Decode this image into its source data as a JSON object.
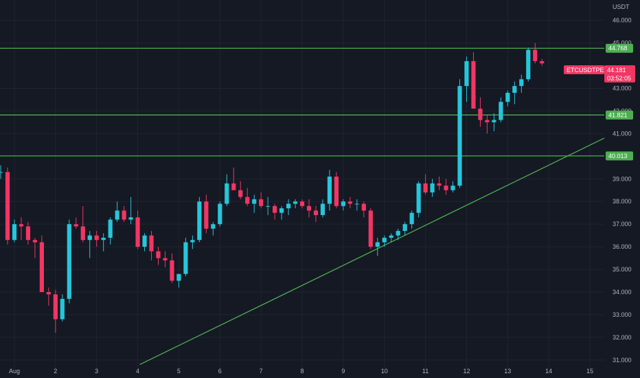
{
  "chart_data": {
    "type": "candlestick",
    "currency_label": "USDT",
    "symbol": "ETCUSDTPERP",
    "last_price": "44.181",
    "countdown": "03:52:05",
    "ylim": [
      30.6,
      46.9
    ],
    "xlim": [
      0.65,
      15.35
    ],
    "y_ticks": [
      "46.000",
      "45.000",
      "43.000",
      "42.000",
      "41.000",
      "39.000",
      "38.000",
      "37.000",
      "36.000",
      "35.000",
      "34.000",
      "33.000",
      "32.000",
      "31.000"
    ],
    "x_ticks": [
      {
        "label": "Aug",
        "x": 1
      },
      {
        "label": "2",
        "x": 2
      },
      {
        "label": "3",
        "x": 3
      },
      {
        "label": "4",
        "x": 4
      },
      {
        "label": "5",
        "x": 5
      },
      {
        "label": "6",
        "x": 6
      },
      {
        "label": "7",
        "x": 7
      },
      {
        "label": "8",
        "x": 8
      },
      {
        "label": "9",
        "x": 9
      },
      {
        "label": "10",
        "x": 10
      },
      {
        "label": "11",
        "x": 11
      },
      {
        "label": "12",
        "x": 12
      },
      {
        "label": "13",
        "x": 13
      },
      {
        "label": "14",
        "x": 14
      },
      {
        "label": "15",
        "x": 15
      }
    ],
    "levels": [
      {
        "value": 44.768,
        "label": "44.768"
      },
      {
        "value": 41.821,
        "label": "41.821"
      },
      {
        "value": 40.013,
        "label": "40.013"
      }
    ],
    "trendline": {
      "from": [
        4.05,
        30.8
      ],
      "to": [
        15.35,
        40.8
      ]
    },
    "candles_per_day": 6,
    "candle_start_x": 0.667,
    "candles": [
      [
        39.3,
        39.6,
        39.0,
        39.3
      ],
      [
        39.3,
        39.5,
        36.1,
        36.3
      ],
      [
        36.3,
        37.2,
        36.2,
        37.0
      ],
      [
        37.0,
        37.3,
        36.3,
        36.9
      ],
      [
        36.9,
        37.1,
        36.1,
        36.3
      ],
      [
        36.3,
        36.4,
        35.5,
        36.2
      ],
      [
        36.2,
        36.5,
        34.0,
        34.0
      ],
      [
        34.0,
        34.2,
        33.4,
        33.9
      ],
      [
        33.9,
        34.1,
        32.2,
        32.8
      ],
      [
        32.8,
        33.9,
        32.7,
        33.7
      ],
      [
        33.7,
        37.2,
        33.5,
        37.0
      ],
      [
        37.0,
        37.3,
        36.8,
        36.9
      ],
      [
        36.9,
        37.8,
        36.2,
        36.3
      ],
      [
        36.3,
        36.7,
        35.5,
        36.5
      ],
      [
        36.5,
        36.7,
        36.0,
        36.3
      ],
      [
        36.3,
        36.6,
        35.8,
        36.4
      ],
      [
        36.4,
        37.3,
        36.1,
        37.2
      ],
      [
        37.2,
        38.0,
        37.1,
        37.6
      ],
      [
        37.6,
        37.8,
        37.1,
        37.2
      ],
      [
        37.2,
        38.2,
        37.0,
        37.3
      ],
      [
        37.3,
        37.6,
        35.9,
        36.0
      ],
      [
        36.0,
        36.6,
        35.8,
        36.5
      ],
      [
        36.5,
        36.7,
        35.4,
        35.8
      ],
      [
        35.8,
        36.0,
        35.2,
        35.5
      ],
      [
        35.5,
        35.8,
        35.1,
        35.4
      ],
      [
        35.4,
        35.7,
        34.4,
        34.5
      ],
      [
        34.5,
        34.8,
        34.2,
        34.8
      ],
      [
        34.8,
        36.4,
        34.7,
        36.2
      ],
      [
        36.2,
        36.5,
        35.9,
        36.3
      ],
      [
        36.3,
        38.2,
        36.2,
        38.0
      ],
      [
        38.0,
        38.3,
        36.6,
        36.8
      ],
      [
        36.8,
        37.1,
        36.5,
        37.0
      ],
      [
        37.0,
        38.0,
        36.9,
        37.9
      ],
      [
        37.9,
        39.2,
        37.8,
        38.8
      ],
      [
        38.8,
        39.5,
        38.6,
        38.5
      ],
      [
        38.5,
        38.9,
        38.1,
        38.2
      ],
      [
        38.2,
        38.6,
        37.8,
        37.9
      ],
      [
        37.9,
        38.3,
        37.5,
        38.1
      ],
      [
        38.1,
        38.4,
        37.7,
        37.8
      ],
      [
        37.8,
        38.2,
        37.4,
        37.8
      ],
      [
        37.8,
        37.9,
        37.2,
        37.5
      ],
      [
        37.5,
        37.8,
        37.2,
        37.7
      ],
      [
        37.7,
        38.1,
        37.4,
        37.9
      ],
      [
        37.9,
        38.1,
        37.7,
        38.0
      ],
      [
        38.0,
        38.1,
        37.7,
        37.8
      ],
      [
        37.8,
        38.1,
        37.3,
        37.6
      ],
      [
        37.6,
        37.8,
        37.1,
        37.4
      ],
      [
        37.4,
        38.1,
        37.3,
        37.9
      ],
      [
        37.9,
        39.4,
        37.6,
        39.1
      ],
      [
        39.1,
        39.3,
        37.7,
        37.8
      ],
      [
        37.8,
        38.1,
        37.6,
        38.0
      ],
      [
        38.0,
        38.2,
        37.7,
        37.9
      ],
      [
        37.9,
        38.1,
        37.6,
        37.9
      ],
      [
        37.9,
        38.0,
        37.3,
        37.6
      ],
      [
        37.6,
        37.7,
        35.9,
        36.0
      ],
      [
        36.0,
        36.4,
        35.6,
        36.2
      ],
      [
        36.2,
        36.5,
        36.0,
        36.4
      ],
      [
        36.4,
        36.6,
        36.2,
        36.5
      ],
      [
        36.5,
        36.8,
        36.3,
        36.7
      ],
      [
        36.7,
        37.1,
        36.5,
        37.0
      ],
      [
        37.0,
        37.6,
        36.8,
        37.5
      ],
      [
        37.5,
        38.9,
        37.3,
        38.8
      ],
      [
        38.8,
        39.2,
        38.3,
        38.4
      ],
      [
        38.4,
        39.0,
        38.2,
        38.8
      ],
      [
        38.8,
        39.1,
        38.5,
        38.7
      ],
      [
        38.7,
        39.0,
        38.3,
        38.5
      ],
      [
        38.5,
        38.9,
        38.4,
        38.7
      ],
      [
        38.7,
        43.4,
        38.6,
        43.1
      ],
      [
        43.1,
        44.4,
        42.4,
        44.2
      ],
      [
        44.2,
        44.6,
        42.2,
        42.1
      ],
      [
        42.1,
        42.6,
        41.3,
        41.6
      ],
      [
        41.6,
        41.8,
        41.0,
        41.5
      ],
      [
        41.5,
        41.9,
        41.1,
        41.6
      ],
      [
        41.6,
        42.6,
        41.5,
        42.4
      ],
      [
        42.4,
        42.9,
        42.2,
        42.8
      ],
      [
        42.8,
        43.3,
        42.3,
        43.1
      ],
      [
        43.1,
        43.6,
        42.8,
        43.4
      ],
      [
        43.4,
        44.8,
        43.3,
        44.7
      ],
      [
        44.7,
        45.0,
        44.1,
        44.2
      ],
      [
        44.2,
        44.3,
        44.0,
        44.1
      ]
    ]
  },
  "colors": {
    "background": "#151924",
    "grid": "#1f2430",
    "up": "#26c6da",
    "down": "#f23664",
    "level": "#4caf50",
    "trend": "#4caf50",
    "text": "#b2b5be",
    "symbol_badge": "#f23664"
  }
}
